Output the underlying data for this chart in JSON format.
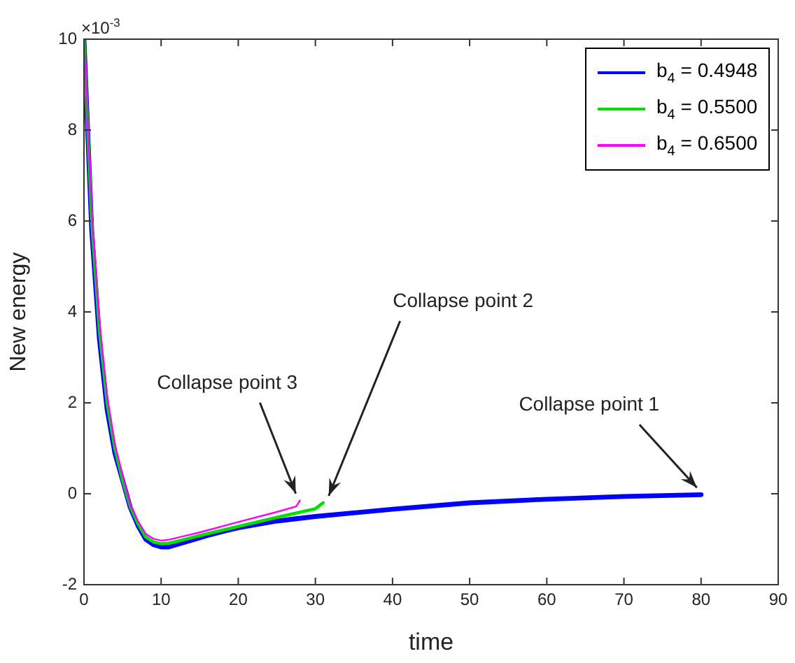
{
  "chart_data": {
    "type": "line",
    "xlabel": "time",
    "ylabel": "New energy",
    "xlim": [
      0,
      90
    ],
    "xticks": [
      0,
      10,
      20,
      30,
      40,
      50,
      60,
      70,
      80,
      90
    ],
    "ylim": [
      -2,
      10
    ],
    "yticks": [
      -2,
      0,
      2,
      4,
      6,
      8,
      10
    ],
    "grid": false,
    "legend": "top right",
    "marker": "none",
    "line_style": "solid",
    "series": [
      {
        "name": "b$_{4}$ = 0.4948",
        "color": "#0000ff",
        "x": [
          0,
          1,
          2,
          3,
          4,
          5,
          6,
          7,
          8,
          9,
          10,
          11,
          12,
          14,
          16,
          18,
          20,
          25,
          30,
          40,
          50,
          60,
          70,
          80
        ],
        "values": [
          10,
          5.8,
          3.4,
          1.85,
          0.9,
          0.3,
          -0.3,
          -0.7,
          -1.0,
          -1.12,
          -1.17,
          -1.17,
          -1.12,
          -1.02,
          -0.92,
          -0.83,
          -0.75,
          -0.6,
          -0.5,
          -0.34,
          -0.2,
          -0.12,
          -0.06,
          -0.02
        ]
      },
      {
        "name": "b$_{4}$ = 0.5500",
        "color": "#00e000",
        "x": [
          0,
          1,
          2,
          3,
          4,
          5,
          6,
          7,
          8,
          9,
          10,
          11,
          12,
          15,
          20,
          25,
          30,
          31
        ],
        "values": [
          10,
          6,
          3.6,
          2,
          1,
          0.3,
          -0.28,
          -0.66,
          -0.95,
          -1.06,
          -1.1,
          -1.09,
          -1.05,
          -0.92,
          -0.72,
          -0.52,
          -0.33,
          -0.2
        ]
      },
      {
        "name": "b$_{4}$ = 0.6500",
        "color": "#ff00ff",
        "x": [
          0,
          1,
          2,
          3,
          4,
          5,
          6,
          7,
          8,
          9,
          10,
          11,
          12,
          15,
          20,
          25,
          27.5,
          28
        ],
        "values": [
          10,
          6.2,
          3.8,
          2.15,
          1.1,
          0.4,
          -0.25,
          -0.6,
          -0.88,
          -0.99,
          -1.03,
          -1.01,
          -0.97,
          -0.85,
          -0.62,
          -0.4,
          -0.28,
          -0.15
        ]
      }
    ],
    "annotations": [
      "×10$^{-3}$",
      {
        "text": "Collapse point 1",
        "x": 80,
        "y": -0.02
      },
      {
        "text": "Collapse point 2",
        "x": 31,
        "y": -0.2
      },
      {
        "text": "Collapse point 3",
        "x": 28,
        "y": -0.15
      }
    ]
  }
}
